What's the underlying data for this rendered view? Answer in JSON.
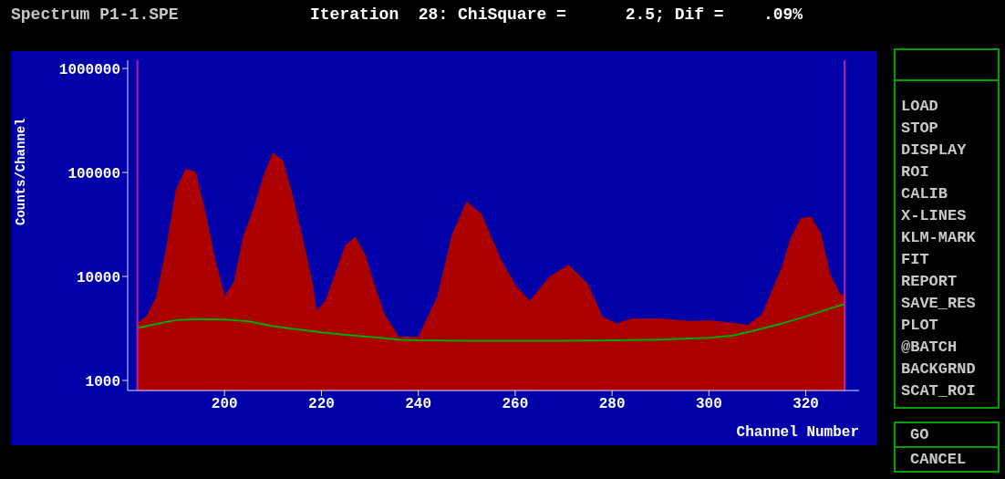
{
  "chart_data": {
    "type": "area",
    "title": "Spectrum P1-1.SPE",
    "subtitle": "Iteration  28: ChiSquare =      2.5; Dif =    .09%",
    "xlabel": "Channel Number",
    "ylabel": "Counts/Channel",
    "log": "y",
    "grid": false,
    "legend": false,
    "marker": "none",
    "xlim": [
      180,
      331
    ],
    "xticks": [
      200,
      220,
      240,
      260,
      280,
      300,
      320
    ],
    "ylim": [
      800,
      1200000
    ],
    "yticks": [
      1000,
      10000,
      100000,
      1000000
    ],
    "series": [
      {
        "color": "#aa0000",
        "x": [
          182,
          184,
          186,
          188,
          190,
          192,
          194,
          196,
          198,
          200,
          202,
          204,
          206,
          208,
          210,
          212,
          214,
          216,
          218,
          219,
          221,
          223,
          225,
          227,
          229,
          231,
          233,
          236,
          240,
          244,
          247,
          250,
          253,
          257,
          260,
          263,
          267,
          271,
          275,
          278,
          281,
          284,
          290,
          296,
          300,
          305,
          308,
          311,
          315,
          317,
          319,
          321,
          323,
          325,
          327,
          328
        ],
        "values": [
          3500,
          4200,
          6400,
          18800,
          67500,
          108000,
          100000,
          41200,
          14500,
          6400,
          8900,
          25000,
          44000,
          90000,
          154000,
          130000,
          60000,
          24000,
          9000,
          4550,
          6000,
          11000,
          20000,
          23800,
          16000,
          8000,
          4300,
          2600,
          2600,
          6400,
          25200,
          52200,
          39600,
          14500,
          8200,
          5770,
          9800,
          12900,
          8400,
          4040,
          3520,
          3900,
          3900,
          3700,
          3740,
          3550,
          3390,
          4290,
          11900,
          23800,
          35900,
          37400,
          26200,
          10400,
          6750,
          6620
        ]
      },
      {
        "type": "line",
        "color": "#00aa00",
        "x": [
          182,
          186,
          190,
          195,
          200,
          205,
          210,
          215,
          220,
          225,
          230,
          236,
          240,
          250,
          260,
          270,
          280,
          290,
          300,
          305,
          310,
          315,
          320,
          325,
          328
        ],
        "values": [
          3190,
          3500,
          3800,
          3890,
          3850,
          3700,
          3320,
          3100,
          2900,
          2750,
          2620,
          2470,
          2430,
          2400,
          2400,
          2400,
          2430,
          2470,
          2570,
          2700,
          3070,
          3520,
          4120,
          4920,
          5430
        ]
      }
    ],
    "ref_lines": [
      {
        "axis": "x",
        "value": 182,
        "color": "#b020b0"
      },
      {
        "axis": "x",
        "value": 328,
        "color": "#b020b0"
      }
    ],
    "annotations": [
      "LOAD",
      "STOP",
      "DISPLAY",
      "ROI",
      "CALIB",
      "X-LINES",
      "KLM-MARK",
      "FIT",
      "REPORT",
      "SAVE_RES",
      "PLOT",
      "@BATCH",
      "BACKGRND",
      "SCAT_ROI",
      "GO",
      "CANCEL"
    ]
  }
}
